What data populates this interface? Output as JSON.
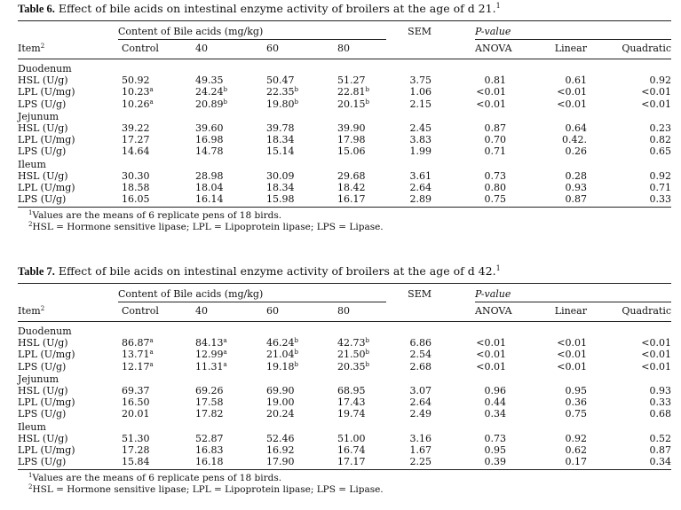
{
  "tables": [
    {
      "caption_label": "Table 6.",
      "caption_text": "Effect of bile acids on intestinal enzyme activity of broilers at the age of d 21.",
      "caption_sup": "1",
      "group_header": "Content of Bile acids (mg/kg)",
      "sem_header": "SEM",
      "pvalue_header": "P-value",
      "item_header": "Item",
      "item_header_sup": "2",
      "columns": [
        "Control",
        "40",
        "60",
        "80"
      ],
      "pvalue_columns": [
        "ANOVA",
        "Linear",
        "Quadratic"
      ],
      "sections": [
        {
          "name": "Duodenum",
          "rows": [
            {
              "label": "HSL (U/g)",
              "values": [
                [
                  "50.92",
                  ""
                ],
                [
                  "49.35",
                  ""
                ],
                [
                  "50.47",
                  ""
                ],
                [
                  "51.27",
                  ""
                ]
              ],
              "sem": "3.75",
              "p": [
                "0.81",
                "0.61",
                "0.92"
              ]
            },
            {
              "label": "LPL (U/mg)",
              "values": [
                [
                  "10.23",
                  "a"
                ],
                [
                  "24.24",
                  "b"
                ],
                [
                  "22.35",
                  "b"
                ],
                [
                  "22.81",
                  "b"
                ]
              ],
              "sem": "1.06",
              "p": [
                "<0.01",
                "<0.01",
                "<0.01"
              ]
            },
            {
              "label": "LPS (U/g)",
              "values": [
                [
                  "10.26",
                  "a"
                ],
                [
                  "20.89",
                  "b"
                ],
                [
                  "19.80",
                  "b"
                ],
                [
                  "20.15",
                  "b"
                ]
              ],
              "sem": "2.15",
              "p": [
                "<0.01",
                "<0.01",
                "<0.01"
              ]
            }
          ]
        },
        {
          "name": "Jejunum",
          "rows": [
            {
              "label": "HSL (U/g)",
              "values": [
                [
                  "39.22",
                  ""
                ],
                [
                  "39.60",
                  ""
                ],
                [
                  "39.78",
                  ""
                ],
                [
                  "39.90",
                  ""
                ]
              ],
              "sem": "2.45",
              "p": [
                "0.87",
                "0.64",
                "0.23"
              ]
            },
            {
              "label": "LPL (U/mg)",
              "values": [
                [
                  "17.27",
                  ""
                ],
                [
                  "16.98",
                  ""
                ],
                [
                  "18.34",
                  ""
                ],
                [
                  "17.98",
                  ""
                ]
              ],
              "sem": "3.83",
              "p": [
                "0.70",
                "0.42.",
                "0.82"
              ]
            },
            {
              "label": "LPS (U/g)",
              "values": [
                [
                  "14.64",
                  ""
                ],
                [
                  "14.78",
                  ""
                ],
                [
                  "15.14",
                  ""
                ],
                [
                  "15.06",
                  ""
                ]
              ],
              "sem": "1.99",
              "p": [
                "0.71",
                "0.26",
                "0.65"
              ]
            }
          ]
        },
        {
          "name": "Ileum",
          "rows": [
            {
              "label": "HSL (U/g)",
              "values": [
                [
                  "30.30",
                  ""
                ],
                [
                  "28.98",
                  ""
                ],
                [
                  "30.09",
                  ""
                ],
                [
                  "29.68",
                  ""
                ]
              ],
              "sem": "3.61",
              "p": [
                "0.73",
                "0.28",
                "0.92"
              ]
            },
            {
              "label": "LPL (U/mg)",
              "values": [
                [
                  "18.58",
                  ""
                ],
                [
                  "18.04",
                  ""
                ],
                [
                  "18.34",
                  ""
                ],
                [
                  "18.42",
                  ""
                ]
              ],
              "sem": "2.64",
              "p": [
                "0.80",
                "0.93",
                "0.71"
              ]
            },
            {
              "label": "LPS (U/g)",
              "values": [
                [
                  "16.05",
                  ""
                ],
                [
                  "16.14",
                  ""
                ],
                [
                  "15.98",
                  ""
                ],
                [
                  "16.17",
                  ""
                ]
              ],
              "sem": "2.89",
              "p": [
                "0.75",
                "0.87",
                "0.33"
              ]
            }
          ]
        }
      ],
      "footnotes": [
        {
          "sup": "1",
          "text": "Values are the means of 6 replicate pens of 18 birds."
        },
        {
          "sup": "2",
          "text": "HSL = Hormone sensitive lipase; LPL = Lipoprotein lipase; LPS = Lipase."
        }
      ]
    },
    {
      "caption_label": "Table 7.",
      "caption_text": "Effect of bile acids on intestinal enzyme activity of broilers at the age of d 42.",
      "caption_sup": "1",
      "group_header": "Content of Bile acids (mg/kg)",
      "sem_header": "SEM",
      "pvalue_header": "P-value",
      "item_header": "Item",
      "item_header_sup": "2",
      "columns": [
        "Control",
        "40",
        "60",
        "80"
      ],
      "pvalue_columns": [
        "ANOVA",
        "Linear",
        "Quadratic"
      ],
      "sections": [
        {
          "name": "Duodenum",
          "rows": [
            {
              "label": "HSL (U/g)",
              "values": [
                [
                  "86.87",
                  "a"
                ],
                [
                  "84.13",
                  "a"
                ],
                [
                  "46.24",
                  "b"
                ],
                [
                  "42.73",
                  "b"
                ]
              ],
              "sem": "6.86",
              "p": [
                "<0.01",
                "<0.01",
                "<0.01"
              ]
            },
            {
              "label": "LPL (U/mg)",
              "values": [
                [
                  "13.71",
                  "a"
                ],
                [
                  "12.99",
                  "a"
                ],
                [
                  "21.04",
                  "b"
                ],
                [
                  "21.50",
                  "b"
                ]
              ],
              "sem": "2.54",
              "p": [
                "<0.01",
                "<0.01",
                "<0.01"
              ]
            },
            {
              "label": "LPS (U/g)",
              "values": [
                [
                  "12.17",
                  "a"
                ],
                [
                  "11.31",
                  "a"
                ],
                [
                  "19.18",
                  "b"
                ],
                [
                  "20.35",
                  "b"
                ]
              ],
              "sem": "2.68",
              "p": [
                "<0.01",
                "<0.01",
                "<0.01"
              ]
            }
          ]
        },
        {
          "name": "Jejunum",
          "rows": [
            {
              "label": "HSL (U/g)",
              "values": [
                [
                  "69.37",
                  ""
                ],
                [
                  "69.26",
                  ""
                ],
                [
                  "69.90",
                  ""
                ],
                [
                  "68.95",
                  ""
                ]
              ],
              "sem": "3.07",
              "p": [
                "0.96",
                "0.95",
                "0.93"
              ]
            },
            {
              "label": "LPL (U/mg)",
              "values": [
                [
                  "16.50",
                  ""
                ],
                [
                  "17.58",
                  ""
                ],
                [
                  "19.00",
                  ""
                ],
                [
                  "17.43",
                  ""
                ]
              ],
              "sem": "2.64",
              "p": [
                "0.44",
                "0.36",
                "0.33"
              ]
            },
            {
              "label": "LPS (U/g)",
              "values": [
                [
                  "20.01",
                  ""
                ],
                [
                  "17.82",
                  ""
                ],
                [
                  "20.24",
                  ""
                ],
                [
                  "19.74",
                  ""
                ]
              ],
              "sem": "2.49",
              "p": [
                "0.34",
                "0.75",
                "0.68"
              ]
            }
          ]
        },
        {
          "name": "Ileum",
          "rows": [
            {
              "label": "HSL (U/g)",
              "values": [
                [
                  "51.30",
                  ""
                ],
                [
                  "52.87",
                  ""
                ],
                [
                  "52.46",
                  ""
                ],
                [
                  "51.00",
                  ""
                ]
              ],
              "sem": "3.16",
              "p": [
                "0.73",
                "0.92",
                "0.52"
              ]
            },
            {
              "label": "LPL (U/mg)",
              "values": [
                [
                  "17.28",
                  ""
                ],
                [
                  "16.83",
                  ""
                ],
                [
                  "16.92",
                  ""
                ],
                [
                  "16.74",
                  ""
                ]
              ],
              "sem": "1.67",
              "p": [
                "0.95",
                "0.62",
                "0.87"
              ]
            },
            {
              "label": "LPS (U/g)",
              "values": [
                [
                  "15.84",
                  ""
                ],
                [
                  "16.18",
                  ""
                ],
                [
                  "17.90",
                  ""
                ],
                [
                  "17.17",
                  ""
                ]
              ],
              "sem": "2.25",
              "p": [
                "0.39",
                "0.17",
                "0.34"
              ]
            }
          ]
        }
      ],
      "footnotes": [
        {
          "sup": "1",
          "text": "Values are the means of 6 replicate pens of 18 birds."
        },
        {
          "sup": "2",
          "text": "HSL = Hormone sensitive lipase; LPL = Lipoprotein lipase; LPS = Lipase."
        }
      ]
    }
  ]
}
